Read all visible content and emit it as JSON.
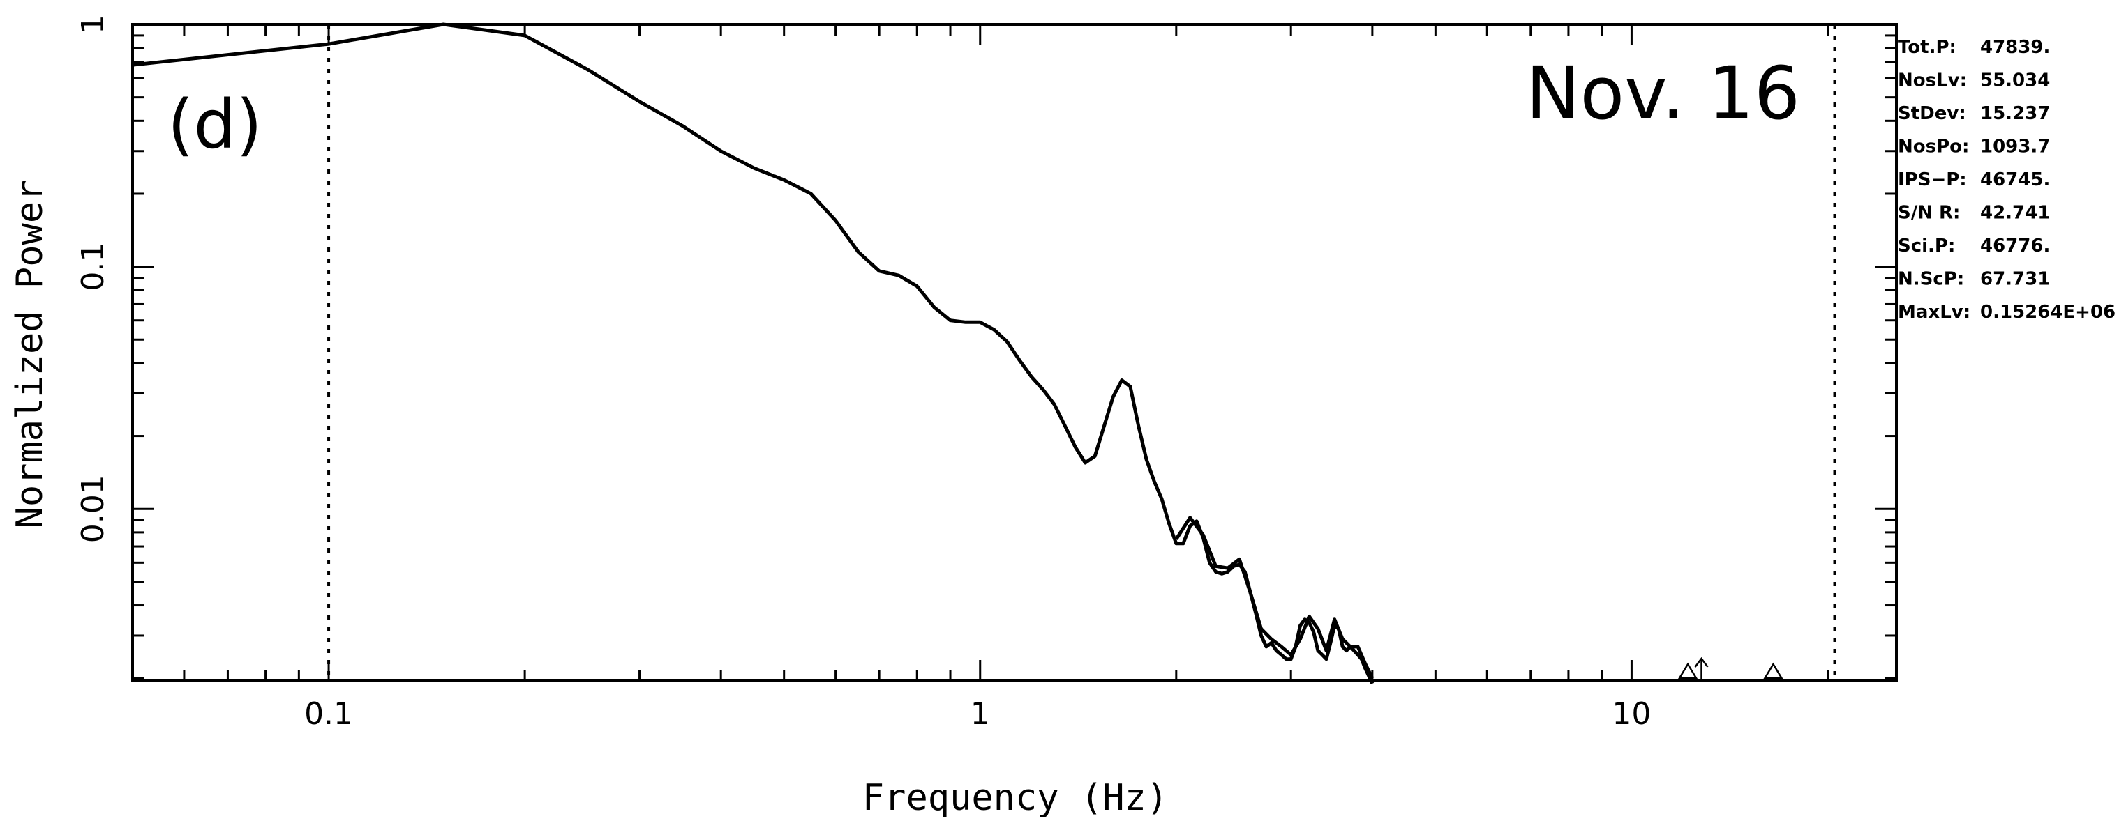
{
  "chart_data": {
    "type": "line",
    "title": "",
    "panel_label": "(d)",
    "date_label": "Nov. 16",
    "xlabel": "Frequency (Hz)",
    "ylabel": "Normalized Power",
    "xscale": "log",
    "yscale": "log",
    "xlim": [
      0.05,
      25.5
    ],
    "ylim": [
      0.00195,
      1.0
    ],
    "x_ticks": [
      {
        "value": 0.1,
        "label": "0.1"
      },
      {
        "value": 1,
        "label": "1"
      },
      {
        "value": 10,
        "label": "10"
      }
    ],
    "y_ticks": [
      {
        "value": 1,
        "label": "1"
      },
      {
        "value": 0.1,
        "label": "0.1"
      },
      {
        "value": 0.01,
        "label": "0.01"
      }
    ],
    "vertical_lines": [
      0.1,
      20.5
    ],
    "series": [
      {
        "x": [
          0.05,
          0.1,
          0.15,
          0.2,
          0.25,
          0.3,
          0.35,
          0.4,
          0.45,
          0.5,
          0.55,
          0.6,
          0.65,
          0.7,
          0.75,
          0.8,
          0.85,
          0.9,
          0.95,
          1.0,
          1.05,
          1.1,
          1.15,
          1.2,
          1.25,
          1.3,
          1.35,
          1.4,
          1.45,
          1.5,
          1.55,
          1.6,
          1.65,
          1.7,
          1.75,
          1.8,
          1.85,
          1.9,
          1.95,
          2.0,
          2.05,
          2.1,
          2.15,
          2.2,
          2.25,
          2.3,
          2.35,
          2.4,
          2.45,
          2.5,
          2.55,
          2.6,
          2.65,
          2.7,
          2.75,
          2.8,
          2.85,
          2.9,
          2.95,
          3.0,
          3.05,
          3.1,
          3.15,
          3.2,
          3.25,
          3.3,
          3.35,
          3.4,
          3.45,
          3.5,
          3.55,
          3.6,
          3.65,
          3.7,
          3.75,
          3.8,
          3.85,
          3.9,
          4.0
        ],
        "y": [
          0.68,
          0.83,
          1.0,
          0.9,
          0.65,
          0.48,
          0.38,
          0.3,
          0.255,
          0.228,
          0.2,
          0.155,
          0.115,
          0.096,
          0.092,
          0.083,
          0.068,
          0.06,
          0.059,
          0.059,
          0.055,
          0.049,
          0.041,
          0.035,
          0.031,
          0.027,
          0.022,
          0.018,
          0.0155,
          0.0165,
          0.022,
          0.029,
          0.034,
          0.032,
          0.022,
          0.016,
          0.013,
          0.011,
          0.0087,
          0.0072,
          0.0072,
          0.0085,
          0.0089,
          0.0076,
          0.006,
          0.0055,
          0.0054,
          0.0055,
          0.0058,
          0.0059,
          0.0055,
          0.0045,
          0.0037,
          0.003,
          0.0027,
          0.0028,
          0.0026,
          0.0025,
          0.0024,
          0.0024,
          0.0027,
          0.0033,
          0.0035,
          0.0034,
          0.0031,
          0.0026,
          0.0025,
          0.0024,
          0.0028,
          0.0033,
          0.0032,
          0.0027,
          0.0026,
          0.0027,
          0.0026,
          0.0025,
          0.0024,
          0.0022,
          0.0019
        ]
      },
      {
        "x": [
          2.0,
          2.1,
          2.2,
          2.3,
          2.4,
          2.5,
          2.6,
          2.7,
          2.8,
          2.9,
          3.0,
          3.1,
          3.2,
          3.3,
          3.4,
          3.5,
          3.6,
          3.7,
          3.8,
          3.9,
          4.0
        ],
        "y": [
          0.0075,
          0.0092,
          0.0078,
          0.0058,
          0.0057,
          0.0062,
          0.0045,
          0.0032,
          0.0029,
          0.0027,
          0.0025,
          0.0029,
          0.0036,
          0.0032,
          0.0026,
          0.0035,
          0.0029,
          0.0027,
          0.0027,
          0.0023,
          0.002
        ]
      }
    ],
    "markers": [
      {
        "type": "triangle",
        "x": 12.2
      },
      {
        "type": "arrow",
        "x": 12.8
      },
      {
        "type": "triangle",
        "x": 16.5
      }
    ],
    "stats": [
      {
        "label": "Tot.P:",
        "value": "47839."
      },
      {
        "label": "NosLv:",
        "value": "55.034"
      },
      {
        "label": "StDev:",
        "value": "15.237"
      },
      {
        "label": "NosPo:",
        "value": "1093.7"
      },
      {
        "label": "IPS−P:",
        "value": "46745."
      },
      {
        "label": "S/N R:",
        "value": "42.741"
      },
      {
        "label": "Sci.P:",
        "value": "46776."
      },
      {
        "label": "N.ScP:",
        "value": "67.731"
      },
      {
        "label": "MaxLv:",
        "value": "0.15264E+06"
      }
    ],
    "colors": {
      "line": "#000000",
      "background": "#ffffff"
    }
  }
}
